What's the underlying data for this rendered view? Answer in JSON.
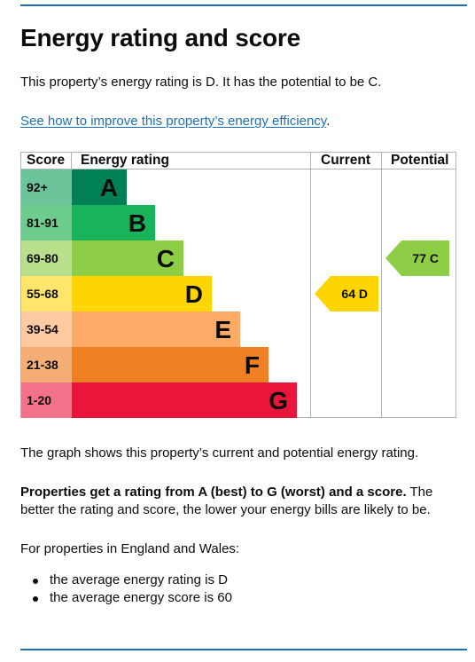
{
  "heading": "Energy rating and score",
  "summary": "This property’s energy rating is D. It has the potential to be C.",
  "improve_link": "See how to improve this property’s energy efficiency",
  "improve_link_suffix": ".",
  "chart": {
    "headers": {
      "score": "Score",
      "rating": "Energy rating",
      "current": "Current",
      "potential": "Potential"
    },
    "bands": [
      {
        "range": "92+",
        "letter": "A",
        "color": "#008054",
        "score_bg": "#6cc49b"
      },
      {
        "range": "81-91",
        "letter": "B",
        "color": "#19b459",
        "score_bg": "#6dcc8e"
      },
      {
        "range": "69-80",
        "letter": "C",
        "color": "#8dce46",
        "score_bg": "#b8e08c"
      },
      {
        "range": "55-68",
        "letter": "D",
        "color": "#ffd500",
        "score_bg": "#ffe66a"
      },
      {
        "range": "39-54",
        "letter": "E",
        "color": "#fcaa65",
        "score_bg": "#fdcaa1"
      },
      {
        "range": "21-38",
        "letter": "F",
        "color": "#ef8023",
        "score_bg": "#f4ae75"
      },
      {
        "range": "1-20",
        "letter": "G",
        "color": "#e9153b",
        "score_bg": "#f27389"
      }
    ],
    "current": {
      "label": "64 D",
      "band": "D",
      "color": "#ffd500"
    },
    "potential": {
      "label": "77 C",
      "band": "C",
      "color": "#8dce46"
    }
  },
  "graph_note": "The graph shows this property’s current and potential energy rating.",
  "rating_info_bold": "Properties get a rating from A (best) to G (worst) and a score.",
  "rating_info_rest": " The better the rating and score, the lower your energy bills are likely to be.",
  "region_intro": "For properties in England and Wales:",
  "averages": [
    "the average energy rating is D",
    "the average energy score is 60"
  ]
}
